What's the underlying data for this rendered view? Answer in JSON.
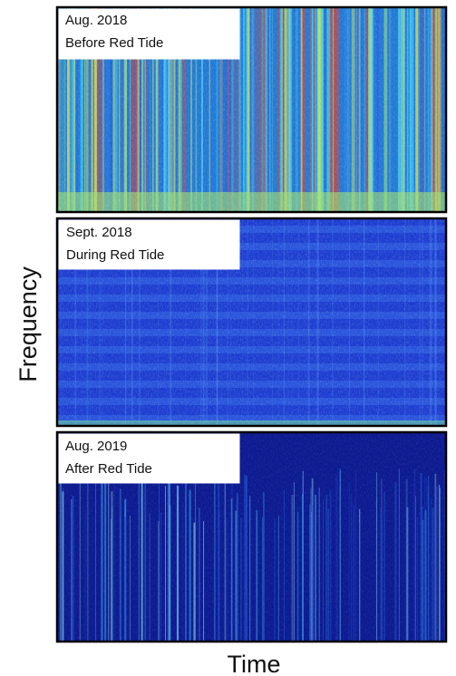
{
  "axes": {
    "y_label": "Frequency",
    "x_label": "Time"
  },
  "panels": [
    {
      "date": "Aug. 2018",
      "caption": "Before Red Tide"
    },
    {
      "date": "Sept. 2018",
      "caption": "During Red Tide"
    },
    {
      "date": "Aug. 2019",
      "caption": "After Red Tide"
    }
  ]
}
